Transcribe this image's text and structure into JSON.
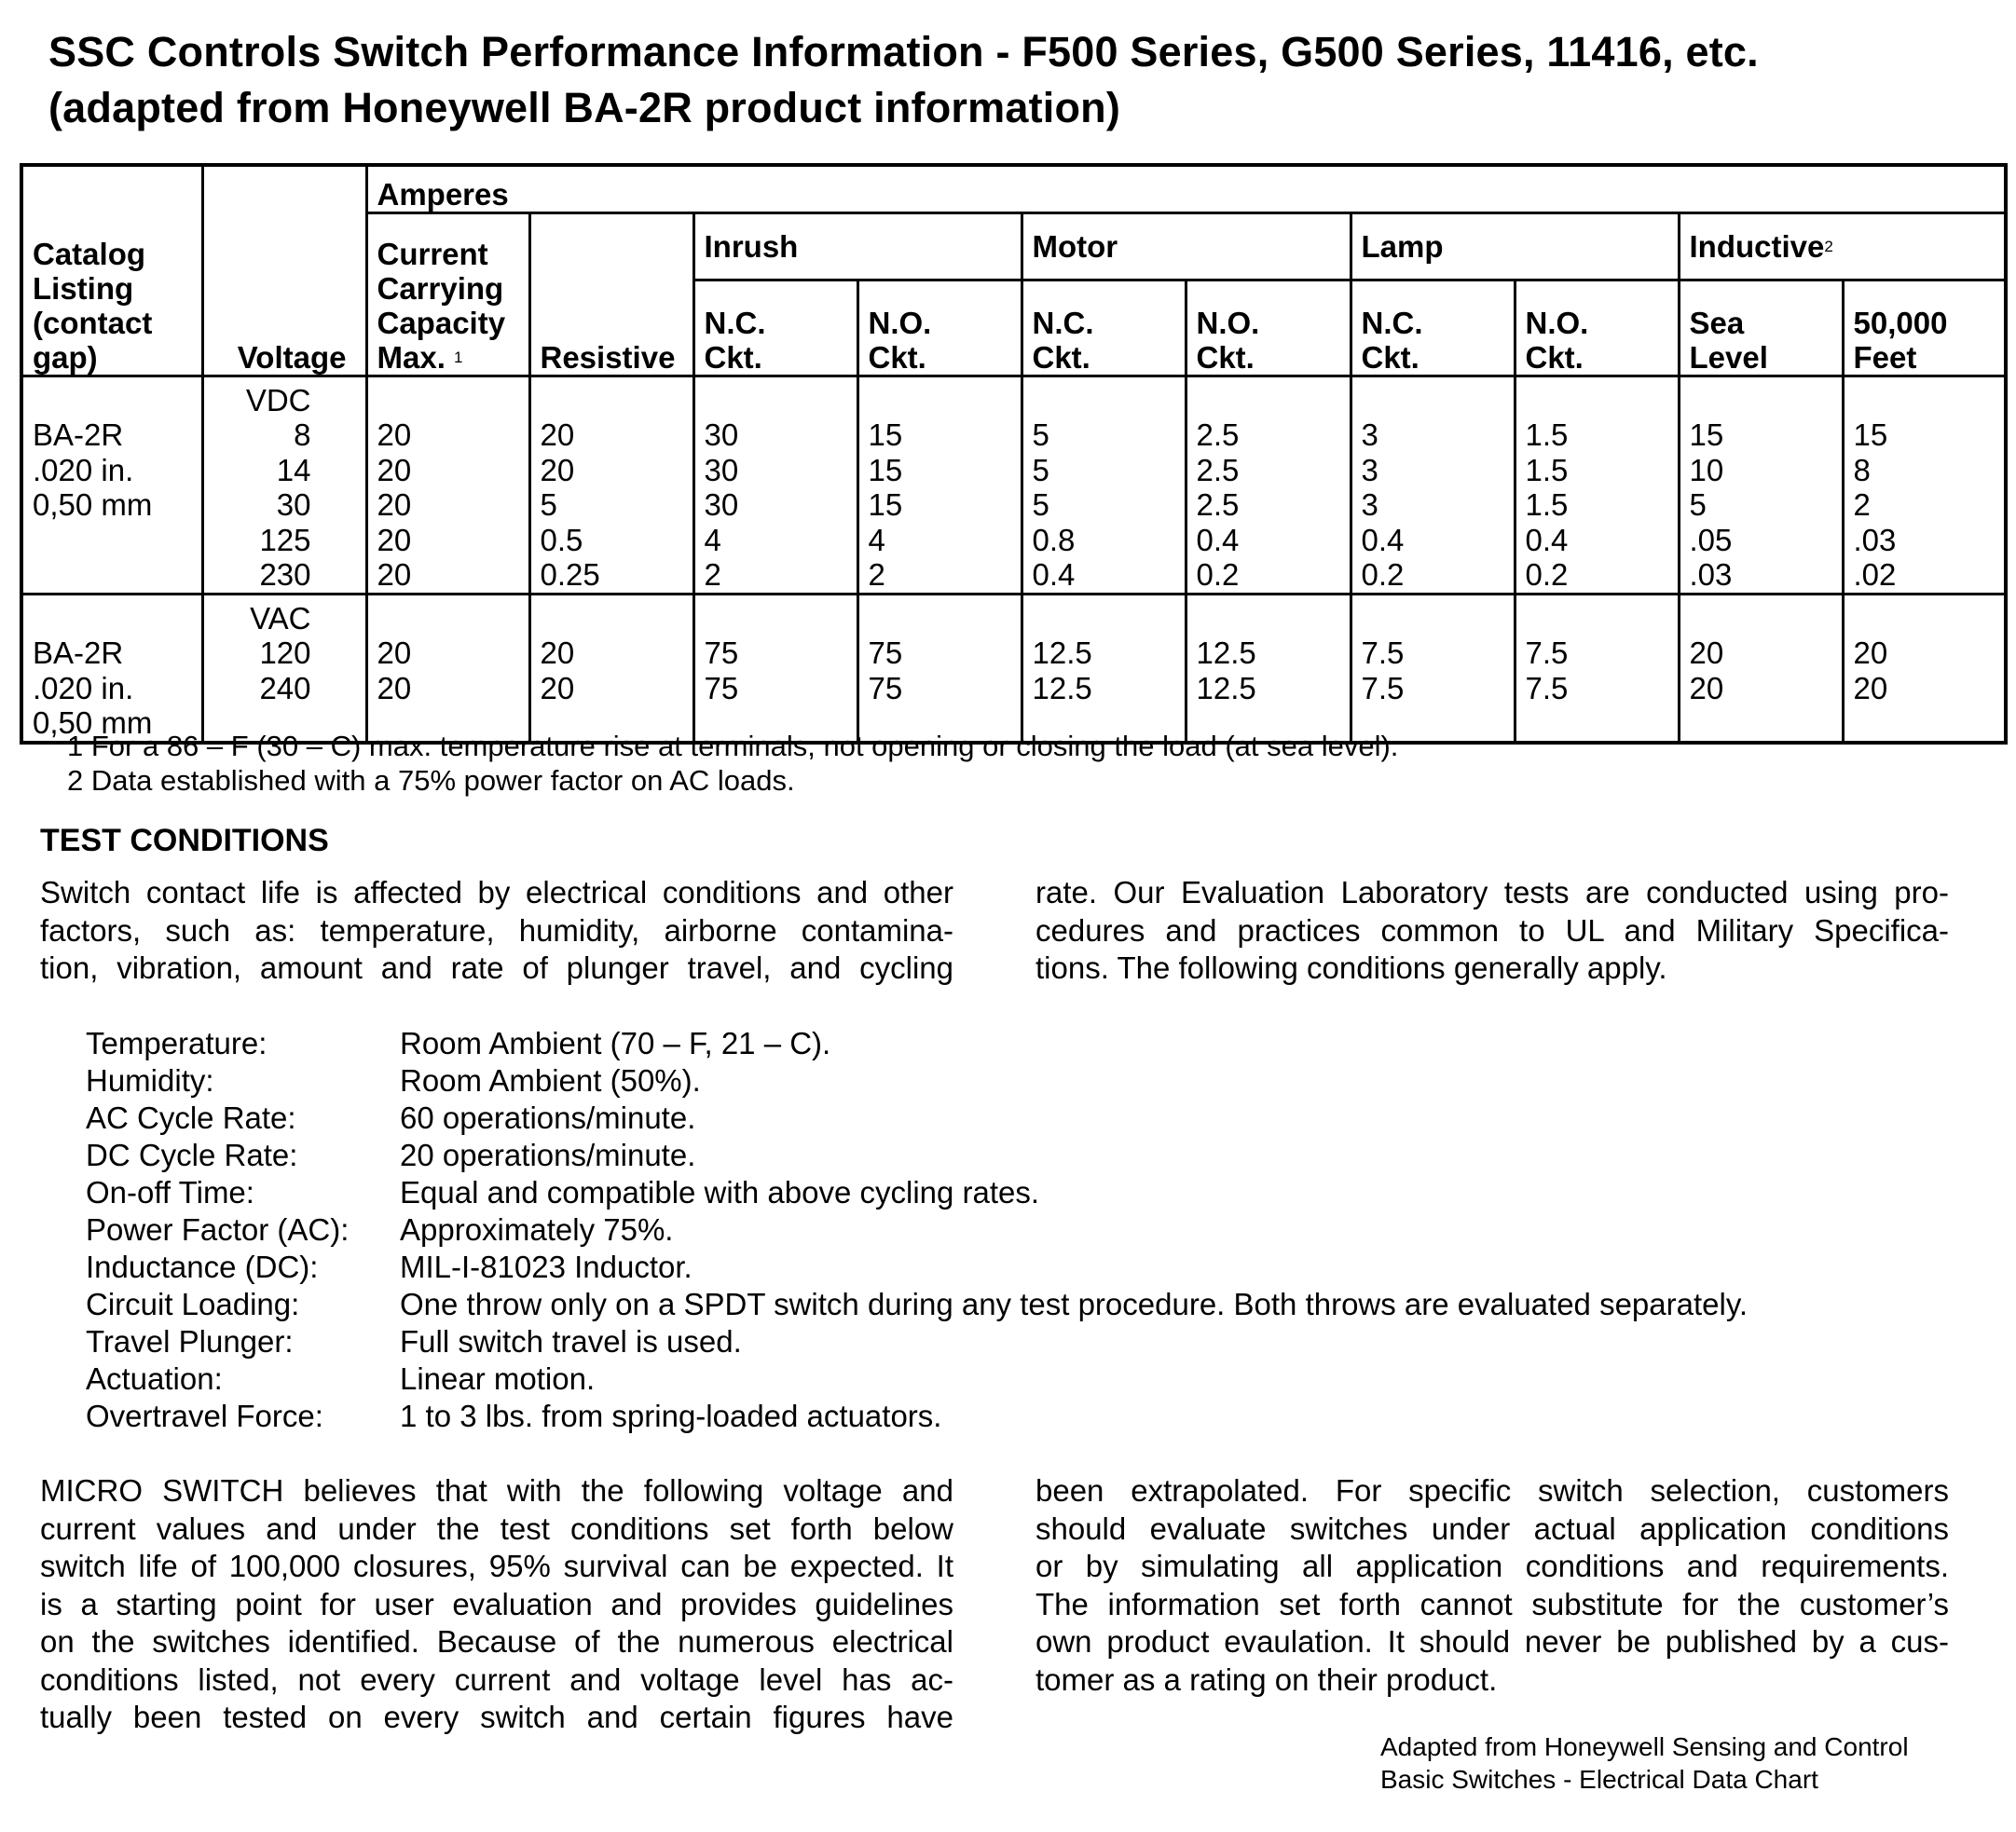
{
  "title": {
    "line1": "SSC Controls Switch Performance Information - F500 Series, G500 Series, 11416, etc.",
    "line2": "(adapted from Honeywell BA-2R product information)"
  },
  "table": {
    "headers": {
      "catalog": [
        "Catalog",
        "Listing",
        "(contact",
        "gap)"
      ],
      "voltage": "Voltage",
      "amperes": "Amperes",
      "ccc": [
        "Current",
        "Carrying",
        "Capacity",
        "Max."
      ],
      "ccc_sup": "1",
      "resistive": "Resistive",
      "inrush": "Inrush",
      "motor": "Motor",
      "lamp": "Lamp",
      "inductive": "Inductive",
      "inductive_sup": "2",
      "nc": [
        "N.C.",
        "Ckt."
      ],
      "no": [
        "N.O.",
        "Ckt."
      ],
      "sea": [
        "Sea",
        "Level"
      ],
      "feet": [
        "50,000",
        "Feet"
      ]
    },
    "groups": [
      {
        "catalog": [
          "BA-2R",
          ".020 in.",
          "0,50 mm"
        ],
        "voltage_unit": "VDC",
        "rows": [
          [
            "8",
            "20",
            "20",
            "30",
            "15",
            "5",
            "2.5",
            "3",
            "1.5",
            "15",
            "15"
          ],
          [
            "14",
            "20",
            "20",
            "30",
            "15",
            "5",
            "2.5",
            "3",
            "1.5",
            "10",
            "8"
          ],
          [
            "30",
            "20",
            "5",
            "30",
            "15",
            "5",
            "2.5",
            "3",
            "1.5",
            "5",
            "2"
          ],
          [
            "125",
            "20",
            "0.5",
            "4",
            "4",
            "0.8",
            "0.4",
            "0.4",
            "0.4",
            ".05",
            ".03"
          ],
          [
            "230",
            "20",
            "0.25",
            "2",
            "2",
            "0.4",
            "0.2",
            "0.2",
            "0.2",
            ".03",
            ".02"
          ]
        ]
      },
      {
        "catalog": [
          "BA-2R",
          ".020 in.",
          "0,50 mm"
        ],
        "voltage_unit": "VAC",
        "rows": [
          [
            "120",
            "20",
            "20",
            "75",
            "75",
            "12.5",
            "12.5",
            "7.5",
            "7.5",
            "20",
            "20"
          ],
          [
            "240",
            "20",
            "20",
            "75",
            "75",
            "12.5",
            "12.5",
            "7.5",
            "7.5",
            "20",
            "20"
          ]
        ]
      }
    ]
  },
  "footnotes": [
    "1  For a 86 – F (30 – C) max. temperature rise at terminals, not opening or closing the load (at sea level).",
    "2  Data established with a 75% power factor on AC loads."
  ],
  "test_conditions": {
    "heading": "TEST CONDITIONS",
    "intro_left": [
      "Switch contact life is affected by electrical conditions and other",
      "factors, such as: temperature, humidity, airborne contamina-",
      "tion, vibration, amount and rate of plunger travel, and cycling"
    ],
    "intro_right": [
      "rate. Our Evaluation Laboratory tests are conducted using pro-",
      "cedures and practices common to UL and Military Specifica-",
      "tions. The following conditions generally apply."
    ],
    "conditions": [
      {
        "label": "Temperature:",
        "value": "Room Ambient (70 – F, 21 – C)."
      },
      {
        "label": "Humidity:",
        "value": "Room Ambient (50%)."
      },
      {
        "label": "AC Cycle Rate:",
        "value": "60 operations/minute."
      },
      {
        "label": "DC Cycle Rate:",
        "value": "20 operations/minute."
      },
      {
        "label": "On-off Time:",
        "value": "Equal and compatible with above cycling rates."
      },
      {
        "label": "Power Factor (AC):",
        "value": "Approximately 75%."
      },
      {
        "label": "Inductance (DC):",
        "value": "MIL-I-81023 Inductor."
      },
      {
        "label": "Circuit Loading:",
        "value": "One throw only on a SPDT switch during any test procedure. Both throws are evaluated separately."
      },
      {
        "label": "Travel Plunger:",
        "value": "Full switch travel is used."
      },
      {
        "label": "Actuation:",
        "value": "Linear motion."
      },
      {
        "label": "Overtravel Force:",
        "value": "1 to 3 lbs. from spring-loaded actuators."
      }
    ],
    "closing_left": [
      "MICRO SWITCH believes that with the following voltage and",
      "current values and under the test conditions set forth below",
      "switch life of 100,000 closures, 95% survival can be expected. It",
      "is a starting point for user evaluation and provides guidelines",
      "on the switches identified. Because of the numerous electrical",
      "conditions listed, not every current and voltage level has ac-",
      "tually been tested on every switch and certain figures have"
    ],
    "closing_right": [
      "been extrapolated. For specific switch selection, customers",
      "should evaluate switches under actual application conditions",
      "or by simulating all application conditions and requirements.",
      "The information set forth cannot substitute for the customer’s",
      "own product evaulation. It should never be published by a cus-",
      "tomer as a rating on their product."
    ]
  },
  "credit": [
    "Adapted from Honeywell Sensing and Control",
    "Basic Switches - Electrical Data Chart"
  ]
}
